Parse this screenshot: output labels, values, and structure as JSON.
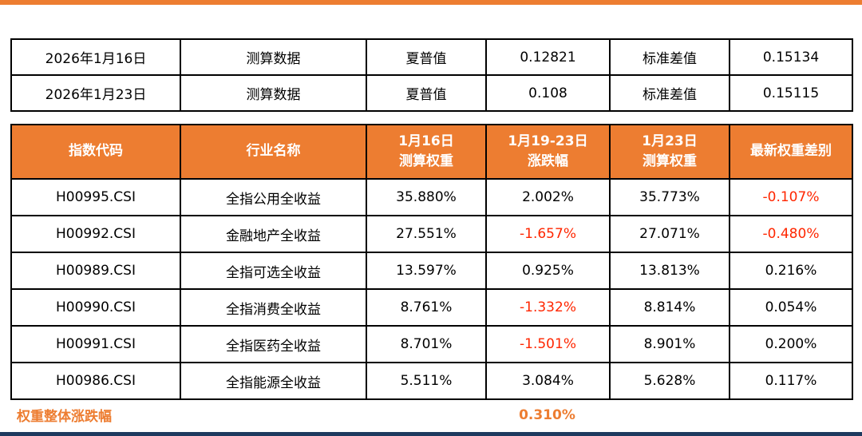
{
  "colors": {
    "accent": "#ED7D31",
    "negative": "#FF2600",
    "bottom_bar": "#1E3A5F"
  },
  "summary": {
    "rows": [
      {
        "date": "2026年1月16日",
        "type": "测算数据",
        "sharpe_label": "夏普值",
        "sharpe_value": "0.12821",
        "std_label": "标准差值",
        "std_value": "0.15134"
      },
      {
        "date": "2026年1月23日",
        "type": "测算数据",
        "sharpe_label": "夏普值",
        "sharpe_value": "0.108",
        "std_label": "标准差值",
        "std_value": "0.15115"
      }
    ]
  },
  "weights_table": {
    "headers": {
      "code": "指数代码",
      "industry": "行业名称",
      "w16": "1月16日\n测算权重",
      "chg": "1月19-23日\n涨跌幅",
      "w23": "1月23日\n测算权重",
      "diff": "最新权重差别"
    },
    "rows": [
      {
        "code": "H00995.CSI",
        "industry": "全指公用全收益",
        "w16": "35.880%",
        "chg": "2.002%",
        "w23": "35.773%",
        "diff": "-0.107%"
      },
      {
        "code": "H00992.CSI",
        "industry": "金融地产全收益",
        "w16": "27.551%",
        "chg": "-1.657%",
        "w23": "27.071%",
        "diff": "-0.480%"
      },
      {
        "code": "H00989.CSI",
        "industry": "全指可选全收益",
        "w16": "13.597%",
        "chg": "0.925%",
        "w23": "13.813%",
        "diff": "0.216%"
      },
      {
        "code": "H00990.CSI",
        "industry": "全指消费全收益",
        "w16": "8.761%",
        "chg": "-1.332%",
        "w23": "8.814%",
        "diff": "0.054%"
      },
      {
        "code": "H00991.CSI",
        "industry": "全指医药全收益",
        "w16": "8.701%",
        "chg": "-1.501%",
        "w23": "8.901%",
        "diff": "0.200%"
      },
      {
        "code": "H00986.CSI",
        "industry": "全指能源全收益",
        "w16": "5.511%",
        "chg": "3.084%",
        "w23": "5.628%",
        "diff": "0.117%"
      }
    ]
  },
  "footer": {
    "label": "权重整体涨跌幅",
    "value": "0.310%"
  }
}
